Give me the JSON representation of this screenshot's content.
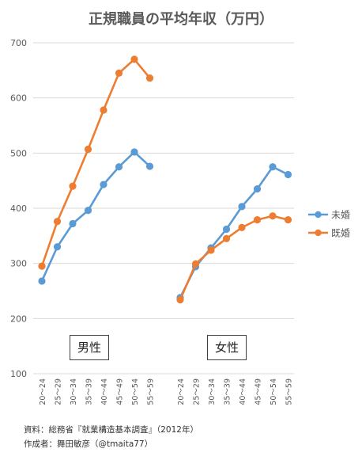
{
  "chart_data": {
    "type": "line",
    "title": "正規職員の平均年収（万円）",
    "ylim": [
      100,
      700
    ],
    "yticks": [
      100,
      200,
      300,
      400,
      500,
      600,
      700
    ],
    "grid": true,
    "legend_position": "right",
    "groups": [
      {
        "label": "男性",
        "categories": [
          "20～24",
          "25～29",
          "30～34",
          "35～39",
          "40～44",
          "45～49",
          "50～54",
          "55～59"
        ]
      },
      {
        "label": "女性",
        "categories": [
          "20～24",
          "25～29",
          "30～34",
          "35～39",
          "40～44",
          "45～49",
          "50～54",
          "55～59"
        ]
      }
    ],
    "series": [
      {
        "name": "未婚",
        "color": "#5B9BD5",
        "values_by_group": [
          [
            268,
            330,
            372,
            396,
            443,
            475,
            502,
            476
          ],
          [
            238,
            294,
            328,
            362,
            403,
            435,
            475,
            461
          ]
        ]
      },
      {
        "name": "既婚",
        "color": "#ED7D31",
        "values_by_group": [
          [
            295,
            376,
            440,
            507,
            578,
            645,
            670,
            636
          ],
          [
            234,
            299,
            324,
            345,
            365,
            379,
            386,
            379
          ]
        ]
      }
    ]
  },
  "source": {
    "line1": "資料：総務省『就業構造基本調査』（2012年）",
    "line2": "作成者：舞田敏彦（@tmaita77）"
  }
}
